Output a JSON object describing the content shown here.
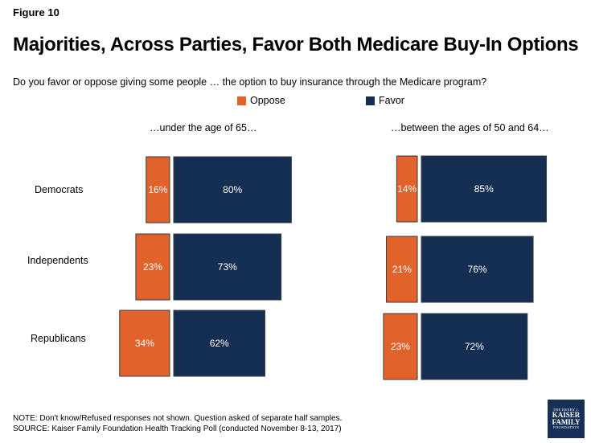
{
  "figure_label": "Figure 10",
  "title": "Majorities, Across Parties, Favor Both Medicare Buy-In Options",
  "question": "Do you favor or oppose giving some people … the option to buy insurance through the Medicare program?",
  "colors": {
    "oppose": "#E2622C",
    "favor": "#152E54"
  },
  "notes": {
    "note": "NOTE: Don't know/Refused responses not shown. Question asked of separate half samples.",
    "source": "SOURCE: Kaiser Family Foundation Health Tracking Poll (conducted November 8-13, 2017)"
  },
  "logo": {
    "line1": "THE HENRY J.",
    "line2": "KAISER",
    "line3": "FAMILY",
    "line4": "FOUNDATION"
  },
  "chart_data": {
    "type": "bar",
    "orientation": "diverging-horizontal",
    "legend": [
      "Oppose",
      "Favor"
    ],
    "categories": [
      "Democrats",
      "Independents",
      "Republicans"
    ],
    "panels": [
      {
        "title": "…under the age of 65…",
        "series": [
          {
            "name": "Oppose",
            "values": [
              16,
              23,
              34
            ]
          },
          {
            "name": "Favor",
            "values": [
              80,
              73,
              62
            ]
          }
        ]
      },
      {
        "title": "…between the ages of 50 and 64…",
        "series": [
          {
            "name": "Oppose",
            "values": [
              14,
              21,
              23
            ]
          },
          {
            "name": "Favor",
            "values": [
              85,
              76,
              72
            ]
          }
        ]
      }
    ],
    "value_suffix": "%"
  }
}
